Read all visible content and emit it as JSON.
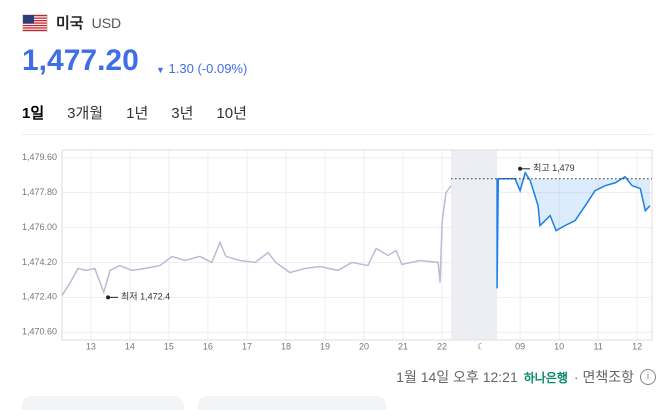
{
  "header": {
    "country": "미국",
    "currency": "USD",
    "rate": "1,477.20",
    "change": "1.30 (-0.09%)"
  },
  "tabs": [
    "1일",
    "3개월",
    "1년",
    "3년",
    "10년"
  ],
  "chart_data": {
    "type": "line",
    "xlim": [
      -0.74,
      14.38
    ],
    "xticks": [
      {
        "value": 0,
        "label": "13"
      },
      {
        "value": 1,
        "label": "14"
      },
      {
        "value": 2,
        "label": "15"
      },
      {
        "value": 3,
        "label": "16"
      },
      {
        "value": 4,
        "label": "17"
      },
      {
        "value": 5,
        "label": "18"
      },
      {
        "value": 6,
        "label": "19"
      },
      {
        "value": 7,
        "label": "20"
      },
      {
        "value": 8,
        "label": "21"
      },
      {
        "value": 9,
        "label": "22"
      },
      {
        "value": 10,
        "label": "☾"
      },
      {
        "value": 11,
        "label": "09"
      },
      {
        "value": 12,
        "label": "10"
      },
      {
        "value": 13,
        "label": "11"
      },
      {
        "value": 14,
        "label": "12"
      }
    ],
    "ylim": [
      1470.2,
      1480.0
    ],
    "yticks": [
      {
        "value": 1470.6,
        "label": "1,470.60"
      },
      {
        "value": 1472.4,
        "label": "1,472.40"
      },
      {
        "value": 1474.2,
        "label": "1,474.20"
      },
      {
        "value": 1476.0,
        "label": "1,476.00"
      },
      {
        "value": 1477.8,
        "label": "1,477.80"
      },
      {
        "value": 1479.6,
        "label": "1,479.60"
      }
    ],
    "grid": true,
    "shaded_range": [
      9.23,
      10.41
    ],
    "reference_value": 1478.52,
    "series": [
      {
        "color": "#b9bdd3",
        "x": [
          -0.74,
          -0.54,
          -0.33,
          -0.13,
          0.1,
          0.33,
          0.49,
          0.74,
          1.05,
          1.38,
          1.77,
          2.08,
          2.41,
          2.79,
          3.1,
          3.31,
          3.46,
          3.82,
          4.21,
          4.54,
          4.74,
          5.1,
          5.49,
          5.87,
          6.33,
          6.69,
          7.1,
          7.31,
          7.62,
          7.82,
          7.97,
          8.44,
          8.9,
          8.95,
          9.0,
          9.1,
          9.23
        ],
        "values": [
          1472.5,
          1473.12,
          1473.89,
          1473.79,
          1473.89,
          1472.66,
          1473.79,
          1474.04,
          1473.79,
          1473.89,
          1474.04,
          1474.51,
          1474.3,
          1474.51,
          1474.2,
          1475.23,
          1474.51,
          1474.3,
          1474.2,
          1474.71,
          1474.2,
          1473.68,
          1473.89,
          1473.99,
          1473.79,
          1474.2,
          1474.04,
          1474.92,
          1474.56,
          1474.82,
          1474.1,
          1474.3,
          1474.2,
          1473.17,
          1476.26,
          1477.8,
          1478.16
        ]
      },
      {
        "color": "#1a7ee8",
        "x": [
          10.41,
          10.41,
          10.44,
          10.87,
          11.0,
          11.13,
          11.26,
          11.46,
          11.51,
          11.77,
          11.92,
          12.15,
          12.41,
          12.67,
          12.92,
          13.18,
          13.44,
          13.69,
          13.87,
          14.08,
          14.21,
          14.33
        ],
        "values": [
          1478.52,
          1472.86,
          1478.52,
          1478.52,
          1477.9,
          1478.83,
          1478.42,
          1477.13,
          1476.1,
          1476.62,
          1475.84,
          1476.1,
          1476.36,
          1477.13,
          1477.9,
          1478.16,
          1478.31,
          1478.62,
          1478.16,
          1478.01,
          1476.87,
          1477.13
        ]
      }
    ],
    "annotations": [
      {
        "text": "최저 1,472.4",
        "x": 0.44,
        "value": 1472.4
      },
      {
        "text": "최고 1,479",
        "x": 11.0,
        "value": 1479.03
      }
    ]
  },
  "footer": {
    "time": "1월 14일 오후 12:21",
    "bank": "하나은행",
    "disclaimer": "· 면책조항"
  }
}
